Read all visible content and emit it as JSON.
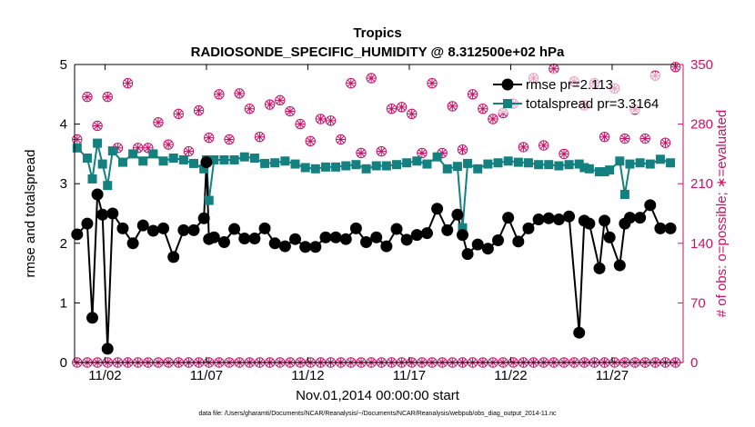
{
  "chart_data": {
    "type": "line",
    "title": "Tropics",
    "subtitle": "RADIOSONDE_SPECIFIC_HUMIDITY @ 8.312500e+02 hPa",
    "xlabel": "Nov.01,2014 00:00:00 start",
    "ylabel": "rmse and totalspread",
    "ylabel_right": "# of obs: o=possible; ∗=evaluated",
    "footnote": "data file: /Users/gharamti/Documents/NCAR/Reanalysis/~/Documents/NCAR/Reanalysis/webpub/obs_diag_output_2014-11.nc",
    "xlim": [
      0.5,
      30.5
    ],
    "ylim": [
      0,
      5
    ],
    "ylim_right": [
      0,
      350
    ],
    "x_tick_values": [
      2,
      7,
      12,
      17,
      22,
      27
    ],
    "x_tick_labels": [
      "11/02",
      "11/07",
      "11/12",
      "11/17",
      "11/22",
      "11/27"
    ],
    "y_tick_labels": [
      "0",
      "1",
      "2",
      "3",
      "4",
      "5"
    ],
    "y_tick_labels_right": [
      "0",
      "70",
      "140",
      "210",
      "280",
      "350"
    ],
    "grid": false,
    "legend_position": "top-right",
    "colors": {
      "rmse": "#000000",
      "totalspread": "#148080",
      "obs": "#cc1166"
    },
    "x": [
      0.625,
      1.125,
      1.375,
      1.625,
      1.875,
      2.125,
      2.375,
      2.875,
      3.375,
      3.875,
      4.375,
      4.875,
      5.375,
      5.875,
      6.375,
      6.875,
      7.0,
      7.125,
      7.375,
      7.875,
      8.375,
      8.875,
      9.375,
      9.875,
      10.375,
      10.875,
      11.375,
      11.875,
      12.375,
      12.875,
      13.375,
      13.875,
      14.375,
      14.875,
      15.375,
      15.875,
      16.375,
      16.875,
      17.375,
      17.875,
      18.375,
      18.875,
      19.375,
      19.625,
      19.875,
      20.375,
      20.875,
      21.375,
      21.875,
      22.375,
      22.875,
      23.375,
      23.875,
      24.375,
      24.875,
      25.375,
      25.625,
      25.875,
      26.375,
      26.625,
      26.875,
      27.375,
      27.625,
      27.875,
      28.375,
      28.875,
      29.375,
      29.875
    ],
    "series": [
      {
        "name": "rmse pr=2.113",
        "values": [
          2.15,
          2.33,
          0.75,
          2.82,
          2.48,
          0.23,
          2.5,
          2.25,
          2.0,
          2.3,
          2.21,
          2.25,
          1.77,
          2.22,
          2.22,
          2.42,
          3.36,
          2.07,
          2.1,
          2.02,
          2.24,
          2.08,
          2.08,
          2.25,
          2.0,
          1.95,
          2.07,
          1.94,
          1.94,
          2.1,
          2.1,
          2.07,
          2.25,
          2.02,
          2.1,
          1.95,
          2.24,
          2.06,
          2.14,
          2.17,
          2.58,
          2.22,
          2.48,
          2.14,
          1.82,
          1.98,
          1.91,
          2.05,
          2.43,
          2.03,
          2.25,
          2.4,
          2.42,
          2.4,
          2.45,
          0.5,
          2.38,
          2.33,
          1.58,
          2.38,
          2.1,
          1.63,
          2.33,
          2.43,
          2.43,
          2.64,
          2.25,
          2.25
        ]
      },
      {
        "name": "totalspread pr=3.3164",
        "values": [
          3.6,
          3.43,
          3.08,
          3.68,
          3.33,
          2.97,
          3.55,
          3.36,
          3.5,
          3.38,
          3.5,
          3.38,
          3.43,
          3.4,
          3.34,
          3.25,
          3.4,
          2.72,
          3.4,
          3.4,
          3.4,
          3.45,
          3.43,
          3.34,
          3.35,
          3.38,
          3.33,
          3.27,
          3.25,
          3.28,
          3.28,
          3.3,
          3.32,
          3.25,
          3.3,
          3.3,
          3.32,
          3.35,
          3.38,
          3.33,
          3.45,
          3.25,
          3.29,
          2.26,
          3.34,
          3.25,
          3.33,
          3.35,
          3.38,
          3.36,
          3.35,
          3.32,
          3.32,
          3.3,
          3.32,
          3.33,
          3.27,
          3.25,
          3.2,
          3.2,
          3.23,
          3.38,
          2.82,
          3.33,
          3.35,
          3.33,
          3.41,
          3.35
        ]
      }
    ],
    "obs_possible_x": [
      0.625,
      1.125,
      1.625,
      2.125,
      2.625,
      3.125,
      3.625,
      4.125,
      4.625,
      5.125,
      5.625,
      6.125,
      6.625,
      7.125,
      7.625,
      8.125,
      8.625,
      9.125,
      9.625,
      10.125,
      10.625,
      11.125,
      11.625,
      12.125,
      12.625,
      13.125,
      13.625,
      14.125,
      14.625,
      15.125,
      15.625,
      16.125,
      16.625,
      17.125,
      17.625,
      18.125,
      18.625,
      19.125,
      19.625,
      20.125,
      20.625,
      21.125,
      21.625,
      22.125,
      22.625,
      23.125,
      23.625,
      24.125,
      24.625,
      25.125,
      25.625,
      26.125,
      26.625,
      27.125,
      27.625,
      28.125,
      28.625,
      29.125,
      29.625,
      30.125
    ],
    "obs_possible": [
      262,
      312,
      278,
      312,
      252,
      328,
      252,
      252,
      282,
      256,
      292,
      248,
      296,
      264,
      315,
      262,
      316,
      298,
      265,
      303,
      308,
      295,
      280,
      260,
      286,
      284,
      262,
      328,
      246,
      334,
      248,
      298,
      300,
      292,
      246,
      328,
      246,
      301,
      250,
      315,
      298,
      286,
      293,
      304,
      253,
      334,
      255,
      345,
      245,
      330,
      302,
      328,
      265,
      322,
      263,
      297,
      263,
      337,
      258,
      347
    ],
    "obs_evaluated_y": 0
  }
}
